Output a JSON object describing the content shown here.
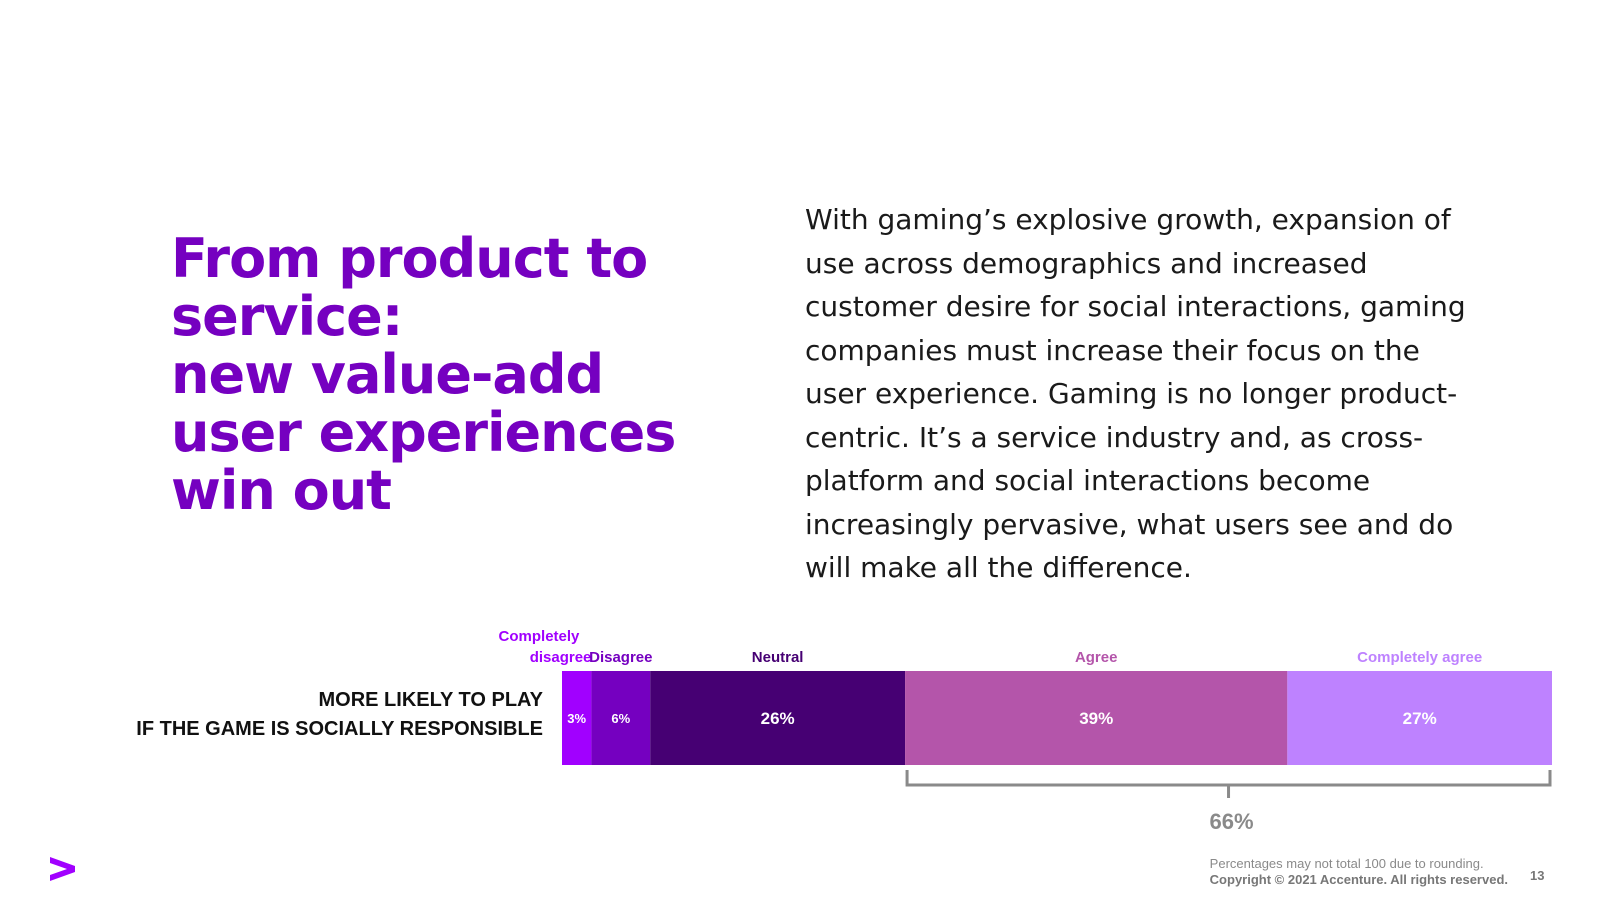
{
  "title": {
    "lines": [
      "From product to",
      "service:",
      "new value-add",
      "user experiences",
      "win out"
    ]
  },
  "body_text": {
    "lines": [
      "With gaming’s explosive growth, expansion of",
      "use across demographics and increased",
      "customer desire for social interactions, gaming",
      "companies must increase their focus on the",
      "user experience. Gaming is no longer product-",
      "centric. It’s a service industry and, as cross-",
      "platform and social interactions become",
      "increasingly pervasive, what users see and do",
      "will make all the difference."
    ]
  },
  "chart_data": {
    "type": "bar",
    "orientation": "horizontal-stacked",
    "row_label_lines": [
      "MORE LIKELY TO PLAY",
      "IF THE GAME IS SOCIALLY RESPONSIBLE"
    ],
    "unit": "%",
    "segments": [
      {
        "name": "Completely disagree",
        "label_lines": [
          "Completely",
          "disagree"
        ],
        "value": 3,
        "color": "#a100ff",
        "label_color": "#a100ff"
      },
      {
        "name": "Disagree",
        "label_lines": [
          "Disagree"
        ],
        "value": 6,
        "color": "#7500c0",
        "label_color": "#7500c0"
      },
      {
        "name": "Neutral",
        "label_lines": [
          "Neutral"
        ],
        "value": 26,
        "color": "#460073",
        "label_color": "#460073"
      },
      {
        "name": "Agree",
        "label_lines": [
          "Agree"
        ],
        "value": 39,
        "color": "#b455aa",
        "label_color": "#b455aa"
      },
      {
        "name": "Completely agree",
        "label_lines": [
          "Completely agree"
        ],
        "value": 27,
        "color": "#be82ff",
        "label_color": "#be82ff"
      }
    ],
    "bracket": {
      "from_segment": 3,
      "to_segment": 4,
      "label": "66%",
      "color": "#8a8a8a"
    }
  },
  "footer": {
    "note": "Percentages may not total 100 due to rounding.",
    "copyright": "Copyright © 2021 Accenture. All rights reserved.",
    "page_number": "13"
  },
  "colors": {
    "accent": "#7500c0",
    "brand": "#a100ff"
  }
}
